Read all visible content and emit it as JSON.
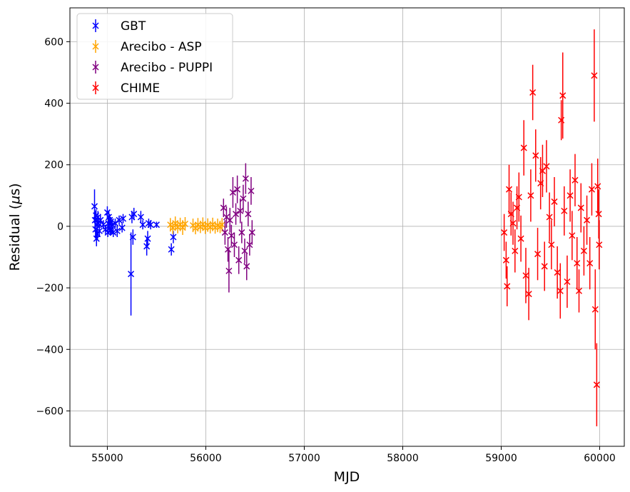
{
  "chart_data": {
    "type": "scatter",
    "xlabel": "MJD",
    "ylabel_prefix": "Residual (",
    "ylabel_mu": "μ",
    "ylabel_suffix": "s)",
    "xlim": [
      54620,
      60250
    ],
    "ylim": [
      -715,
      710
    ],
    "xticks": [
      55000,
      56000,
      57000,
      58000,
      59000,
      60000
    ],
    "yticks": [
      -600,
      -400,
      -200,
      0,
      200,
      400,
      600
    ],
    "ytick_labels": [
      "−600",
      "−400",
      "−200",
      "0",
      "200",
      "400",
      "600"
    ],
    "grid": true,
    "legend_position": "top-left",
    "series": [
      {
        "name": "GBT",
        "color": "#0000ff",
        "points": [
          {
            "x": 54870,
            "y": 65,
            "err": 55
          },
          {
            "x": 54875,
            "y": 20,
            "err": 30
          },
          {
            "x": 54880,
            "y": -10,
            "err": 30
          },
          {
            "x": 54885,
            "y": 35,
            "err": 20
          },
          {
            "x": 54890,
            "y": -40,
            "err": 25
          },
          {
            "x": 54895,
            "y": 5,
            "err": 20
          },
          {
            "x": 54900,
            "y": -25,
            "err": 20
          },
          {
            "x": 54905,
            "y": 30,
            "err": 20
          },
          {
            "x": 54910,
            "y": 10,
            "err": 15
          },
          {
            "x": 54920,
            "y": -15,
            "err": 20
          },
          {
            "x": 54930,
            "y": 20,
            "err": 20
          },
          {
            "x": 54960,
            "y": 5,
            "err": 15
          },
          {
            "x": 54980,
            "y": -10,
            "err": 15
          },
          {
            "x": 55000,
            "y": 45,
            "err": 20
          },
          {
            "x": 55005,
            "y": -20,
            "err": 15
          },
          {
            "x": 55010,
            "y": 10,
            "err": 15
          },
          {
            "x": 55015,
            "y": 30,
            "err": 20
          },
          {
            "x": 55020,
            "y": -5,
            "err": 15
          },
          {
            "x": 55025,
            "y": 20,
            "err": 15
          },
          {
            "x": 55030,
            "y": -15,
            "err": 15
          },
          {
            "x": 55035,
            "y": 15,
            "err": 15
          },
          {
            "x": 55040,
            "y": -10,
            "err": 15
          },
          {
            "x": 55050,
            "y": 5,
            "err": 15
          },
          {
            "x": 55060,
            "y": -20,
            "err": 15
          },
          {
            "x": 55080,
            "y": 10,
            "err": 15
          },
          {
            "x": 55100,
            "y": -15,
            "err": 20
          },
          {
            "x": 55120,
            "y": 20,
            "err": 15
          },
          {
            "x": 55150,
            "y": -5,
            "err": 15
          },
          {
            "x": 55160,
            "y": 25,
            "err": 15
          },
          {
            "x": 55240,
            "y": -155,
            "err": 135
          },
          {
            "x": 55250,
            "y": 30,
            "err": 20
          },
          {
            "x": 55260,
            "y": -35,
            "err": 25
          },
          {
            "x": 55270,
            "y": 40,
            "err": 20
          },
          {
            "x": 55340,
            "y": 30,
            "err": 20
          },
          {
            "x": 55360,
            "y": 5,
            "err": 15
          },
          {
            "x": 55400,
            "y": -65,
            "err": 30
          },
          {
            "x": 55410,
            "y": -40,
            "err": 25
          },
          {
            "x": 55420,
            "y": 10,
            "err": 15
          },
          {
            "x": 55440,
            "y": 5,
            "err": 15
          },
          {
            "x": 55500,
            "y": 5,
            "err": 10
          },
          {
            "x": 55650,
            "y": -75,
            "err": 20
          },
          {
            "x": 55670,
            "y": -35,
            "err": 20
          }
        ]
      },
      {
        "name": "Arecibo - ASP",
        "color": "#ffa500",
        "points": [
          {
            "x": 55640,
            "y": 5,
            "err": 22
          },
          {
            "x": 55665,
            "y": -5,
            "err": 20
          },
          {
            "x": 55690,
            "y": 10,
            "err": 22
          },
          {
            "x": 55715,
            "y": -3,
            "err": 20
          },
          {
            "x": 55740,
            "y": 6,
            "err": 22
          },
          {
            "x": 55765,
            "y": -4,
            "err": 24
          },
          {
            "x": 55790,
            "y": 8,
            "err": 22
          },
          {
            "x": 55870,
            "y": 3,
            "err": 22
          },
          {
            "x": 55895,
            "y": -6,
            "err": 20
          },
          {
            "x": 55920,
            "y": 5,
            "err": 22
          },
          {
            "x": 55945,
            "y": -2,
            "err": 20
          },
          {
            "x": 55970,
            "y": 7,
            "err": 22
          },
          {
            "x": 55995,
            "y": -5,
            "err": 20
          },
          {
            "x": 56020,
            "y": 4,
            "err": 22
          },
          {
            "x": 56045,
            "y": -3,
            "err": 20
          },
          {
            "x": 56070,
            "y": 6,
            "err": 22
          },
          {
            "x": 56095,
            "y": -4,
            "err": 20
          },
          {
            "x": 56120,
            "y": 3,
            "err": 22
          },
          {
            "x": 56145,
            "y": -2,
            "err": 20
          },
          {
            "x": 56165,
            "y": 5,
            "err": 22
          }
        ]
      },
      {
        "name": "Arecibo - PUPPI",
        "color": "#800080",
        "points": [
          {
            "x": 56180,
            "y": 60,
            "err": 30
          },
          {
            "x": 56195,
            "y": -20,
            "err": 40
          },
          {
            "x": 56210,
            "y": 30,
            "err": 35
          },
          {
            "x": 56225,
            "y": -75,
            "err": 40
          },
          {
            "x": 56235,
            "y": -145,
            "err": 70
          },
          {
            "x": 56245,
            "y": 20,
            "err": 40
          },
          {
            "x": 56260,
            "y": -30,
            "err": 35
          },
          {
            "x": 56275,
            "y": 110,
            "err": 50
          },
          {
            "x": 56290,
            "y": -60,
            "err": 40
          },
          {
            "x": 56305,
            "y": 40,
            "err": 35
          },
          {
            "x": 56320,
            "y": 120,
            "err": 45
          },
          {
            "x": 56335,
            "y": -110,
            "err": 45
          },
          {
            "x": 56350,
            "y": 50,
            "err": 40
          },
          {
            "x": 56365,
            "y": -20,
            "err": 35
          },
          {
            "x": 56380,
            "y": 90,
            "err": 45
          },
          {
            "x": 56395,
            "y": -80,
            "err": 40
          },
          {
            "x": 56405,
            "y": 155,
            "err": 50
          },
          {
            "x": 56415,
            "y": -130,
            "err": 45
          },
          {
            "x": 56430,
            "y": 40,
            "err": 40
          },
          {
            "x": 56445,
            "y": -60,
            "err": 35
          },
          {
            "x": 56460,
            "y": 115,
            "err": 45
          },
          {
            "x": 56470,
            "y": -20,
            "err": 40
          }
        ]
      },
      {
        "name": "CHIME",
        "color": "#ff0000",
        "points": [
          {
            "x": 59030,
            "y": -20,
            "err": 60
          },
          {
            "x": 59050,
            "y": -110,
            "err": 60
          },
          {
            "x": 59060,
            "y": -195,
            "err": 65
          },
          {
            "x": 59080,
            "y": 120,
            "err": 80
          },
          {
            "x": 59100,
            "y": 40,
            "err": 70
          },
          {
            "x": 59120,
            "y": 10,
            "err": 70
          },
          {
            "x": 59140,
            "y": -80,
            "err": 70
          },
          {
            "x": 59160,
            "y": 60,
            "err": 70
          },
          {
            "x": 59180,
            "y": 95,
            "err": 80
          },
          {
            "x": 59200,
            "y": -40,
            "err": 75
          },
          {
            "x": 59230,
            "y": 255,
            "err": 90
          },
          {
            "x": 59250,
            "y": -160,
            "err": 90
          },
          {
            "x": 59280,
            "y": -220,
            "err": 85
          },
          {
            "x": 59300,
            "y": 100,
            "err": 85
          },
          {
            "x": 59320,
            "y": 435,
            "err": 90
          },
          {
            "x": 59350,
            "y": 230,
            "err": 85
          },
          {
            "x": 59370,
            "y": -90,
            "err": 85
          },
          {
            "x": 59400,
            "y": 140,
            "err": 85
          },
          {
            "x": 59420,
            "y": 180,
            "err": 85
          },
          {
            "x": 59440,
            "y": -130,
            "err": 80
          },
          {
            "x": 59460,
            "y": 195,
            "err": 85
          },
          {
            "x": 59490,
            "y": 30,
            "err": 80
          },
          {
            "x": 59510,
            "y": -60,
            "err": 80
          },
          {
            "x": 59540,
            "y": 80,
            "err": 80
          },
          {
            "x": 59570,
            "y": -150,
            "err": 85
          },
          {
            "x": 59600,
            "y": -210,
            "err": 90
          },
          {
            "x": 59610,
            "y": 345,
            "err": 65
          },
          {
            "x": 59625,
            "y": 425,
            "err": 140
          },
          {
            "x": 59640,
            "y": 50,
            "err": 80
          },
          {
            "x": 59670,
            "y": -180,
            "err": 85
          },
          {
            "x": 59700,
            "y": 100,
            "err": 85
          },
          {
            "x": 59720,
            "y": -30,
            "err": 80
          },
          {
            "x": 59750,
            "y": 150,
            "err": 85
          },
          {
            "x": 59770,
            "y": -120,
            "err": 85
          },
          {
            "x": 59790,
            "y": -210,
            "err": 70
          },
          {
            "x": 59810,
            "y": 60,
            "err": 80
          },
          {
            "x": 59840,
            "y": -80,
            "err": 80
          },
          {
            "x": 59870,
            "y": 20,
            "err": 80
          },
          {
            "x": 59900,
            "y": -120,
            "err": 85
          },
          {
            "x": 59920,
            "y": 120,
            "err": 85
          },
          {
            "x": 59945,
            "y": 490,
            "err": 150
          },
          {
            "x": 59955,
            "y": -270,
            "err": 130
          },
          {
            "x": 59970,
            "y": -515,
            "err": 135
          },
          {
            "x": 59980,
            "y": 130,
            "err": 90
          },
          {
            "x": 59990,
            "y": 40,
            "err": 80
          },
          {
            "x": 59995,
            "y": -60,
            "err": 80
          }
        ]
      }
    ]
  }
}
